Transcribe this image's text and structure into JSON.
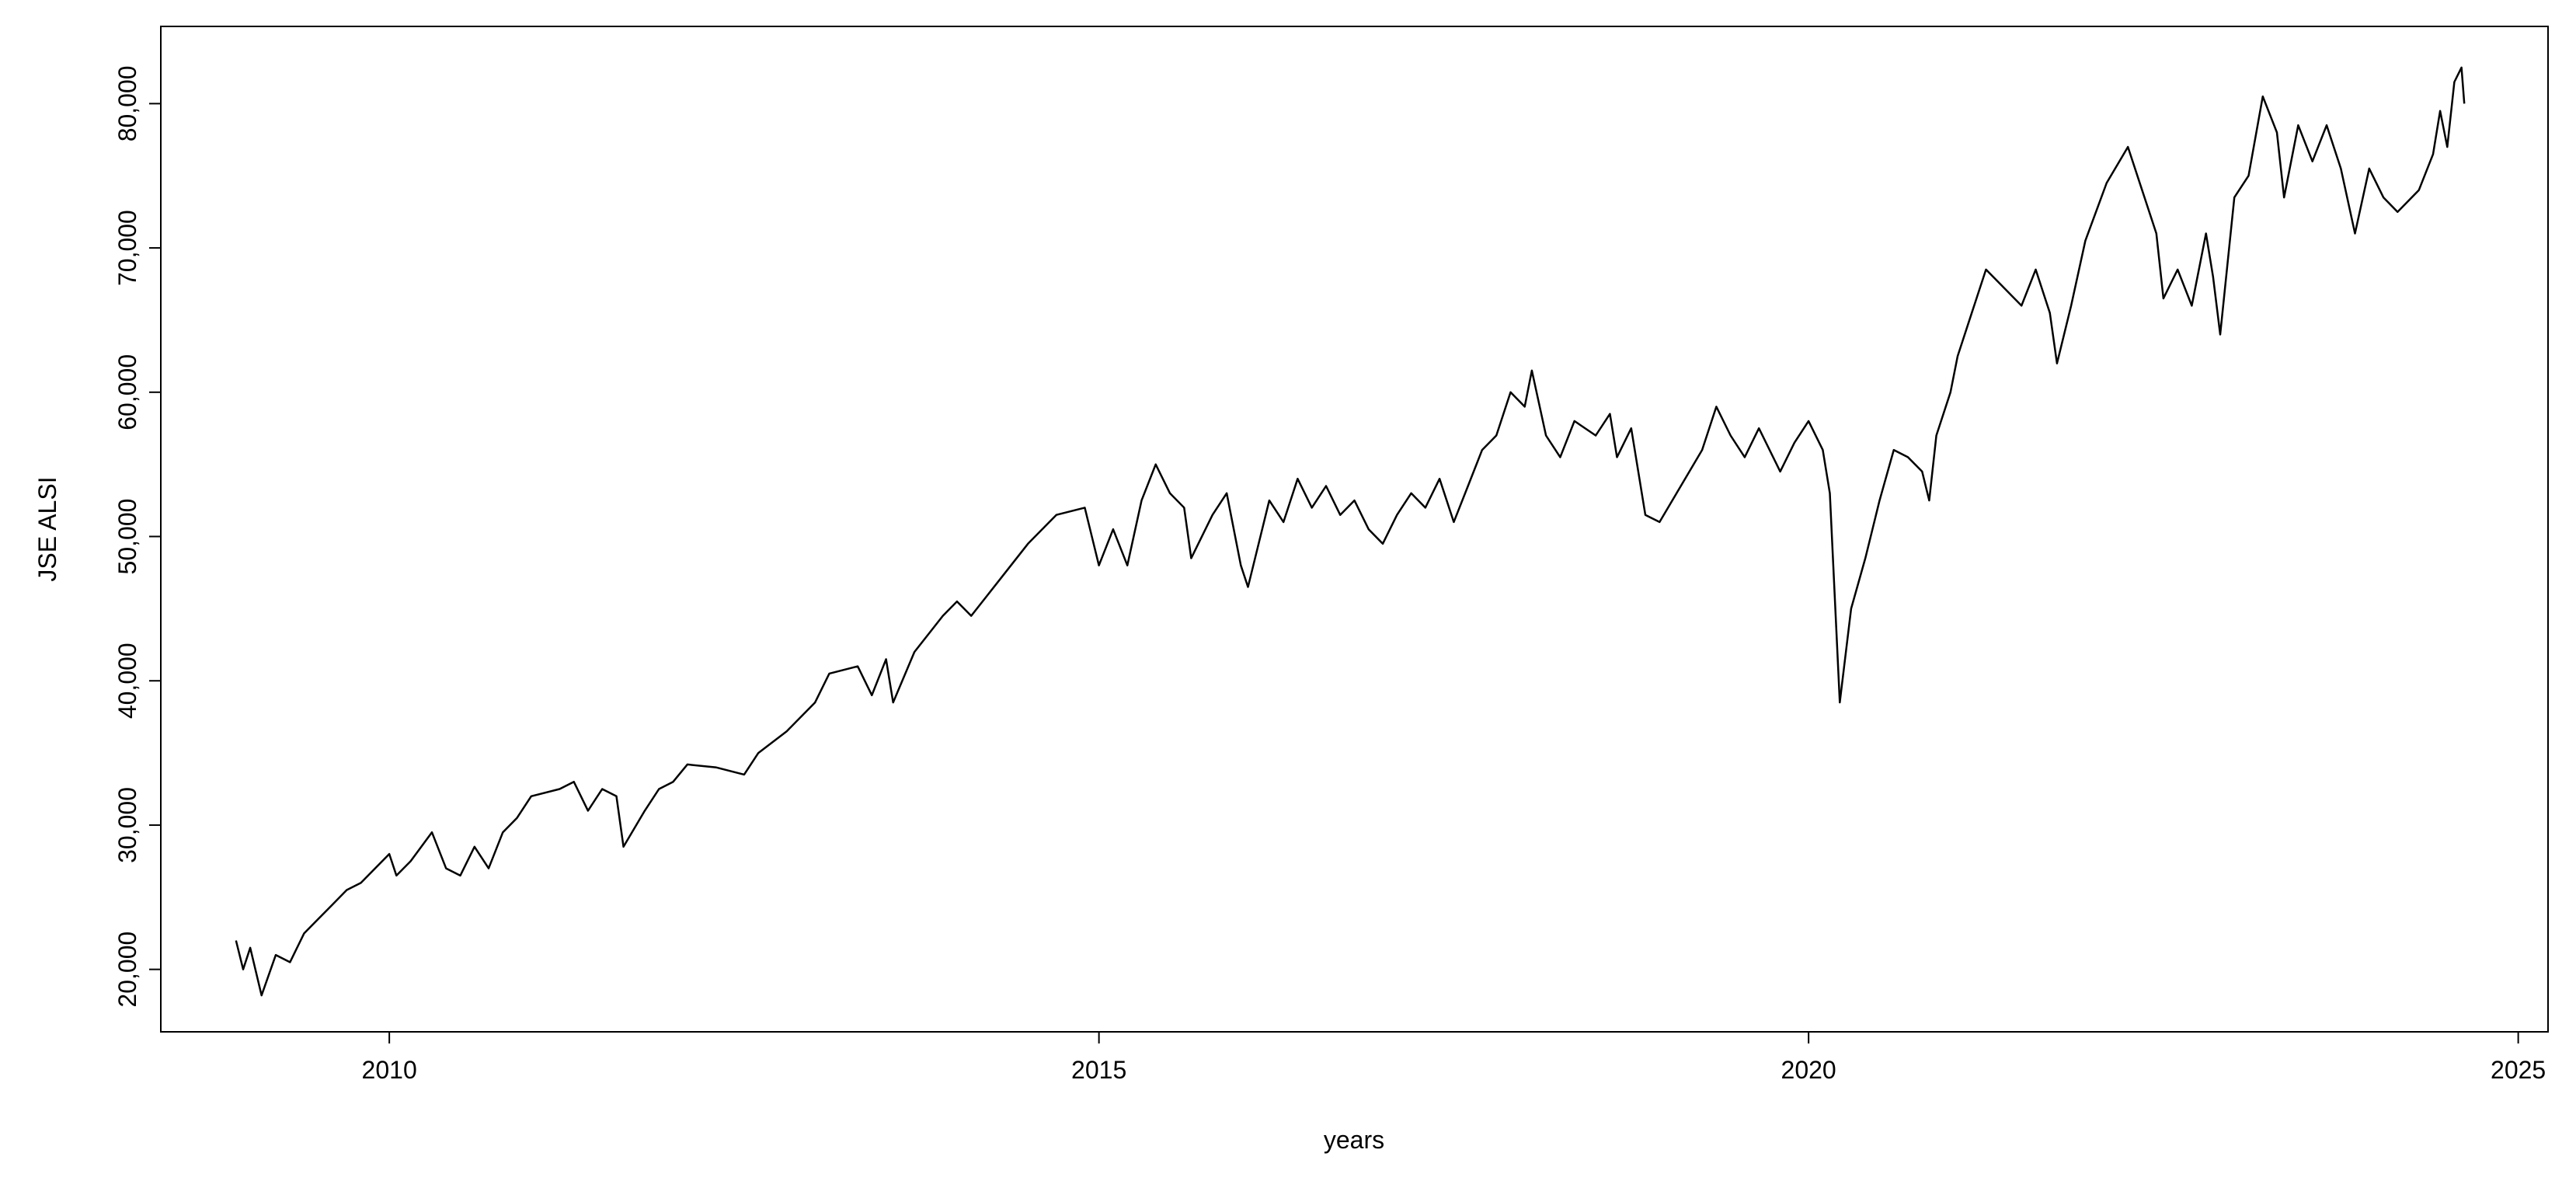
{
  "chart_data": {
    "type": "line",
    "xlabel": "years",
    "ylabel": "JSE ALSI",
    "color": "#000000",
    "x": [
      2008.92,
      2008.97,
      2009.02,
      2009.1,
      2009.2,
      2009.3,
      2009.4,
      2009.5,
      2009.6,
      2009.7,
      2009.8,
      2009.9,
      2010.0,
      2010.05,
      2010.15,
      2010.3,
      2010.4,
      2010.5,
      2010.6,
      2010.7,
      2010.8,
      2010.9,
      2011.0,
      2011.2,
      2011.3,
      2011.4,
      2011.5,
      2011.6,
      2011.65,
      2011.8,
      2011.9,
      2012.0,
      2012.1,
      2012.3,
      2012.5,
      2012.6,
      2012.8,
      2013.0,
      2013.1,
      2013.3,
      2013.4,
      2013.5,
      2013.55,
      2013.7,
      2013.9,
      2014.0,
      2014.1,
      2014.3,
      2014.5,
      2014.7,
      2014.9,
      2014.95,
      2015.0,
      2015.1,
      2015.2,
      2015.3,
      2015.4,
      2015.5,
      2015.6,
      2015.65,
      2015.8,
      2015.9,
      2016.0,
      2016.05,
      2016.2,
      2016.3,
      2016.4,
      2016.5,
      2016.6,
      2016.7,
      2016.8,
      2016.9,
      2017.0,
      2017.1,
      2017.2,
      2017.3,
      2017.4,
      2017.5,
      2017.6,
      2017.7,
      2017.8,
      2017.9,
      2018.0,
      2018.05,
      2018.15,
      2018.25,
      2018.35,
      2018.5,
      2018.6,
      2018.65,
      2018.75,
      2018.85,
      2018.95,
      2019.1,
      2019.25,
      2019.35,
      2019.45,
      2019.55,
      2019.65,
      2019.8,
      2019.9,
      2020.0,
      2020.1,
      2020.15,
      2020.22,
      2020.3,
      2020.4,
      2020.5,
      2020.6,
      2020.7,
      2020.8,
      2020.85,
      2020.9,
      2021.0,
      2021.05,
      2021.15,
      2021.25,
      2021.4,
      2021.5,
      2021.6,
      2021.7,
      2021.75,
      2021.85,
      2021.95,
      2022.1,
      2022.25,
      2022.35,
      2022.45,
      2022.5,
      2022.6,
      2022.7,
      2022.8,
      2022.85,
      2022.9,
      2023.0,
      2023.1,
      2023.2,
      2023.3,
      2023.35,
      2023.45,
      2023.55,
      2023.65,
      2023.75,
      2023.85,
      2023.95,
      2024.05,
      2024.15,
      2024.3,
      2024.4,
      2024.45,
      2024.5,
      2024.55,
      2024.6,
      2024.62
    ],
    "values": [
      22000,
      20000,
      21500,
      18200,
      21000,
      20500,
      22500,
      23500,
      24500,
      25500,
      26000,
      27000,
      28000,
      26500,
      27500,
      29500,
      27000,
      26500,
      28500,
      27000,
      29500,
      30500,
      32000,
      32500,
      33000,
      31000,
      32500,
      32000,
      28500,
      31000,
      32500,
      33000,
      34200,
      34000,
      33500,
      35000,
      36500,
      38500,
      40500,
      41000,
      39000,
      41500,
      38500,
      42000,
      44500,
      45500,
      44500,
      47000,
      49500,
      51500,
      52000,
      50000,
      48000,
      50500,
      48000,
      52500,
      55000,
      53000,
      52000,
      48500,
      51500,
      53000,
      48000,
      46500,
      52500,
      51000,
      54000,
      52000,
      53500,
      51500,
      52500,
      50500,
      49500,
      51500,
      53000,
      52000,
      54000,
      51000,
      53500,
      56000,
      57000,
      60000,
      59000,
      61500,
      57000,
      55500,
      58000,
      57000,
      58500,
      55500,
      57500,
      51500,
      51000,
      53500,
      56000,
      59000,
      57000,
      55500,
      57500,
      54500,
      56500,
      58000,
      56000,
      53000,
      38500,
      45000,
      48500,
      52500,
      56000,
      55500,
      54500,
      52500,
      57000,
      60000,
      62500,
      65500,
      68500,
      67000,
      66000,
      68500,
      65500,
      62000,
      66000,
      70500,
      74500,
      77000,
      74000,
      71000,
      66500,
      68500,
      66000,
      71000,
      68000,
      64000,
      73500,
      75000,
      80500,
      78000,
      73500,
      78500,
      76000,
      78500,
      75500,
      71000,
      75500,
      73500,
      72500,
      74000,
      76500,
      79500,
      77000,
      81500,
      82500,
      80000
    ],
    "xlim": [
      2008.39,
      2025.21
    ],
    "xticks": [
      2010,
      2015,
      2020,
      2025
    ],
    "ylim": [
      15673,
      85351
    ],
    "yticks": [
      {
        "value": 20000,
        "label": "20,000"
      },
      {
        "value": 30000,
        "label": "30,000"
      },
      {
        "value": 40000,
        "label": "40,000"
      },
      {
        "value": 50000,
        "label": "50,000"
      },
      {
        "value": 60000,
        "label": "60,000"
      },
      {
        "value": 70000,
        "label": "70,000"
      },
      {
        "value": 80000,
        "label": "80,000"
      }
    ]
  }
}
